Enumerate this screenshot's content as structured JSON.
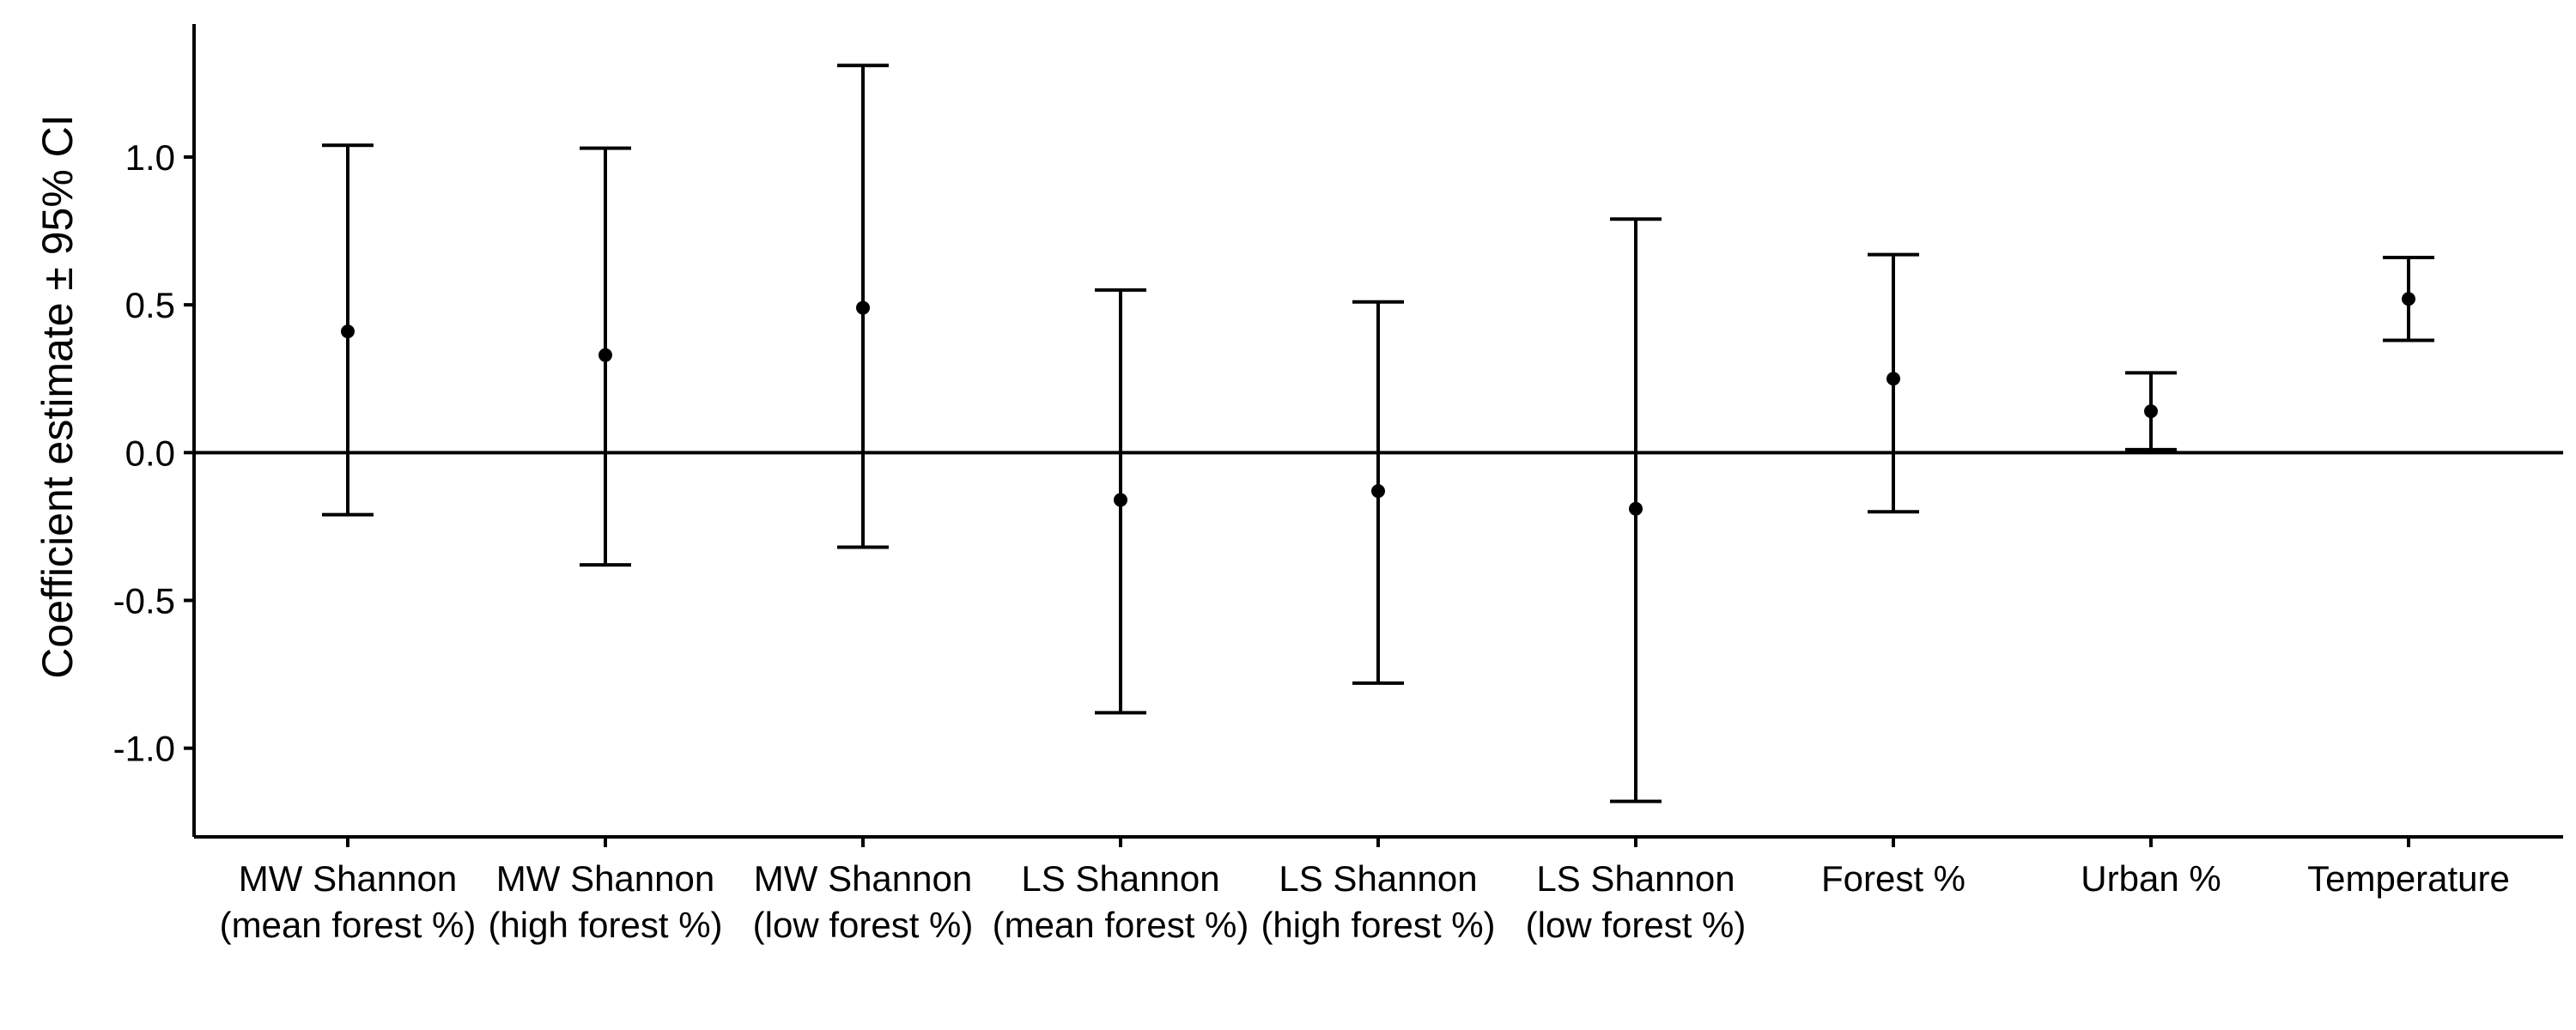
{
  "chart_data": {
    "type": "scatter",
    "title": "",
    "xlabel": "",
    "ylabel": "Coefficient estimate ± 95% CI",
    "ylim": [
      -1.3,
      1.45
    ],
    "grid": false,
    "legend": "none",
    "yticks": [
      1.0,
      0.5,
      0.0,
      -0.5,
      -1.0
    ],
    "ytick_labels": [
      "1.0",
      "0.5",
      "0.0",
      "-0.5",
      "-1.0"
    ],
    "reference_line": 0,
    "categories": [
      [
        "MW Shannon",
        "(mean forest %)"
      ],
      [
        "MW Shannon",
        "(high forest %)"
      ],
      [
        "MW Shannon",
        "(low forest %)"
      ],
      [
        "LS Shannon",
        "(mean forest %)"
      ],
      [
        "LS Shannon",
        "(high forest %)"
      ],
      [
        "LS Shannon",
        "(low forest %)"
      ],
      [
        "Forest %"
      ],
      [
        "Urban %"
      ],
      [
        "Temperature"
      ]
    ],
    "estimate": [
      0.41,
      0.33,
      0.49,
      -0.16,
      -0.13,
      -0.19,
      0.25,
      0.14,
      0.52
    ],
    "lower": [
      -0.21,
      -0.38,
      -0.32,
      -0.88,
      -0.78,
      -1.18,
      -0.2,
      0.01,
      0.38
    ],
    "upper": [
      1.04,
      1.03,
      1.31,
      0.55,
      0.51,
      0.79,
      0.67,
      0.27,
      0.66
    ],
    "colors": {
      "axes": "#000000",
      "points": "#000000",
      "background": "#ffffff"
    }
  }
}
